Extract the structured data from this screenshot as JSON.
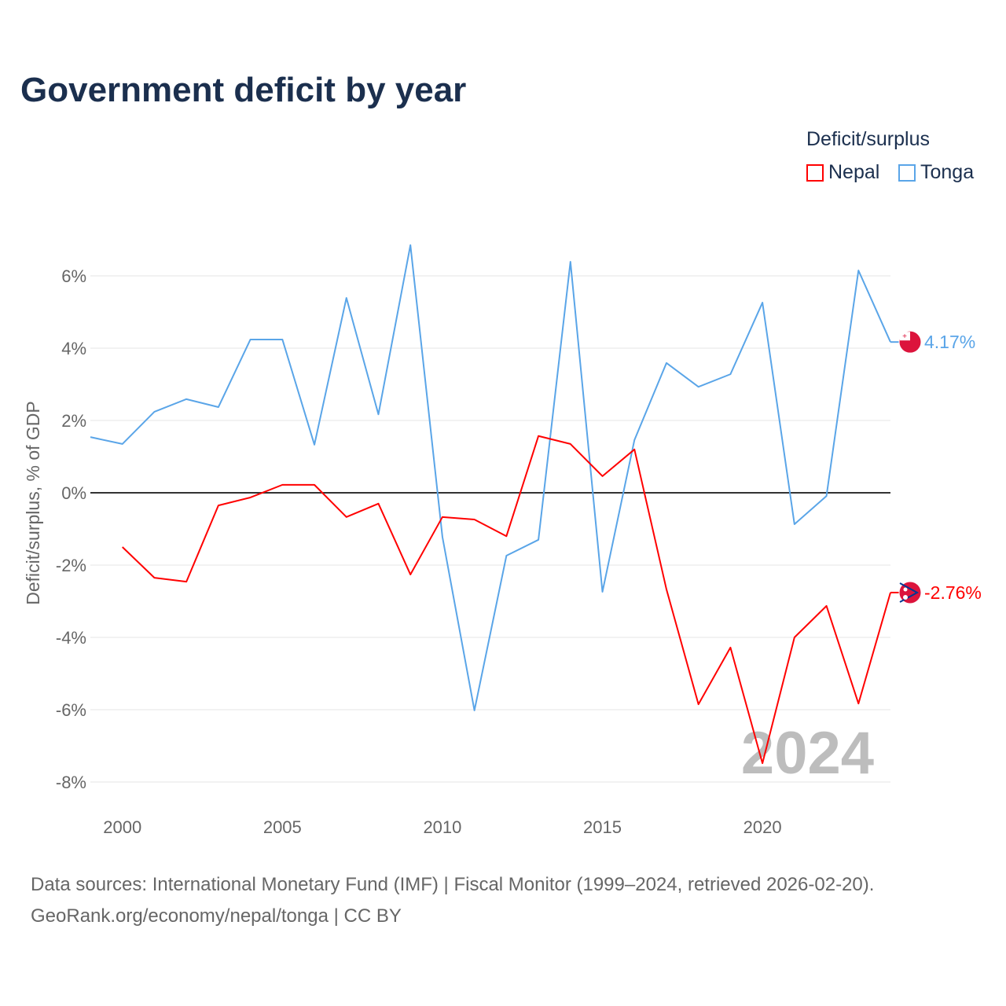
{
  "title": "Government deficit by year",
  "legend": {
    "title": "Deficit/surplus",
    "items": [
      {
        "label": "Nepal",
        "color": "#ff0000"
      },
      {
        "label": "Tonga",
        "color": "#5aa5e8"
      }
    ]
  },
  "footer": {
    "line1": "Data sources: International Monetary Fund (IMF) | Fiscal Monitor (1999–2024, retrieved 2026-02-20).",
    "line2": "GeoRank.org/economy/nepal/tonga | CC BY"
  },
  "chart_data": {
    "type": "line",
    "ylabel": "Deficit/surplus, % of GDP",
    "xlim": [
      1999,
      2024
    ],
    "ylim": [
      -8.5,
      7
    ],
    "xticks": [
      2000,
      2005,
      2010,
      2015,
      2020
    ],
    "xtick_labels": [
      "2000",
      "2005",
      "2010",
      "2015",
      "2020"
    ],
    "yticks": [
      6,
      4,
      2,
      0,
      -2,
      -4,
      -6,
      -8
    ],
    "ytick_labels": [
      "6%",
      "4%",
      "2%",
      "0%",
      "-2%",
      "-4%",
      "-6%",
      "-8%"
    ],
    "watermark_year": "2024",
    "series": [
      {
        "name": "Tonga",
        "color": "#5aa5e8",
        "end_label": "4.17%",
        "x": [
          1999,
          2000,
          2001,
          2002,
          2003,
          2004,
          2005,
          2006,
          2007,
          2008,
          2009,
          2010,
          2011,
          2012,
          2013,
          2014,
          2015,
          2016,
          2017,
          2018,
          2019,
          2020,
          2021,
          2022,
          2023,
          2024
        ],
        "values": [
          1.54,
          1.35,
          2.24,
          2.59,
          2.37,
          4.24,
          4.24,
          1.33,
          5.39,
          2.17,
          6.85,
          -1.22,
          -6.02,
          -1.74,
          -1.3,
          6.39,
          -2.74,
          1.46,
          3.59,
          2.93,
          3.28,
          5.26,
          -0.87,
          -0.09,
          6.15,
          4.17
        ]
      },
      {
        "name": "Nepal",
        "color": "#ff0000",
        "end_label": "-2.76%",
        "x": [
          2000,
          2001,
          2002,
          2003,
          2004,
          2005,
          2006,
          2007,
          2008,
          2009,
          2010,
          2011,
          2012,
          2013,
          2014,
          2015,
          2016,
          2017,
          2018,
          2019,
          2020,
          2021,
          2022,
          2023,
          2024
        ],
        "values": [
          -1.5,
          -2.35,
          -2.46,
          -0.35,
          -0.13,
          0.22,
          0.22,
          -0.67,
          -0.3,
          -2.26,
          -0.67,
          -0.74,
          -1.2,
          1.57,
          1.35,
          0.46,
          1.2,
          -2.67,
          -5.85,
          -4.28,
          -7.48,
          -4.0,
          -3.13,
          -5.83,
          -2.76
        ]
      }
    ]
  }
}
